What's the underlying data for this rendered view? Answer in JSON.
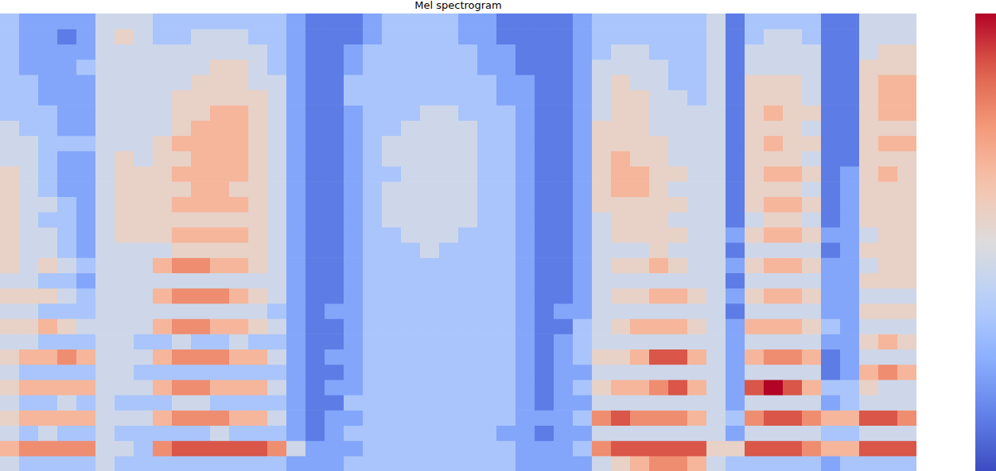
{
  "chart_data": {
    "type": "heatmap",
    "title": "Mel spectrogram",
    "tick_labels": false,
    "colorbar": {
      "range": [
        0,
        9
      ]
    },
    "cells": [
      [
        4,
        6,
        4,
        5,
        4,
        5,
        4,
        5,
        4,
        5,
        4,
        5,
        4,
        5,
        5,
        5,
        5,
        5,
        5,
        5,
        4,
        4,
        4,
        3,
        3,
        3,
        3,
        3,
        3,
        3
      ],
      [
        3,
        7,
        3,
        6,
        3,
        6,
        3,
        6,
        4,
        5,
        4,
        5,
        4,
        4,
        4,
        4,
        4,
        4,
        4,
        4,
        4,
        4,
        3,
        3,
        3,
        3,
        2,
        2,
        2,
        2
      ],
      [
        3,
        7,
        4,
        6,
        3,
        6,
        3,
        6,
        3,
        6,
        3,
        5,
        3,
        5,
        4,
        4,
        3,
        4,
        3,
        3,
        3,
        3,
        3,
        3,
        2,
        2,
        2,
        2,
        2,
        2
      ],
      [
        3,
        7,
        3,
        6,
        4,
        6,
        3,
        7,
        3,
        5,
        3,
        4,
        3,
        4,
        3,
        3,
        3,
        3,
        2,
        2,
        2,
        3,
        2,
        2,
        2,
        2,
        2,
        2,
        1,
        2
      ],
      [
        3,
        7,
        3,
        6,
        3,
        6,
        3,
        6,
        3,
        4,
        3,
        3,
        2,
        3,
        2,
        2,
        2,
        2,
        2,
        2,
        2,
        3,
        2,
        2,
        2,
        2,
        3,
        2,
        2,
        2
      ],
      [
        4,
        4,
        4,
        4,
        4,
        4,
        4,
        4,
        4,
        4,
        4,
        4,
        4,
        4,
        4,
        4,
        4,
        4,
        4,
        4,
        4,
        4,
        4,
        4,
        4,
        4,
        4,
        4,
        4,
        4
      ],
      [
        3,
        4,
        3,
        4,
        3,
        4,
        4,
        4,
        4,
        4,
        4,
        4,
        4,
        4,
        4,
        5,
        5,
        5,
        5,
        5,
        5,
        4,
        4,
        4,
        4,
        4,
        4,
        4,
        5,
        4
      ],
      [
        3,
        3,
        3,
        4,
        3,
        4,
        3,
        4,
        3,
        4,
        4,
        4,
        4,
        4,
        4,
        5,
        5,
        5,
        5,
        5,
        4,
        4,
        4,
        4,
        4,
        4,
        4,
        4,
        4,
        4
      ],
      [
        3,
        7,
        3,
        6,
        3,
        6,
        3,
        6,
        3,
        6,
        4,
        6,
        4,
        6,
        4,
        5,
        5,
        5,
        5,
        5,
        5,
        5,
        4,
        4,
        4,
        4,
        4,
        4,
        3,
        3
      ],
      [
        3,
        8,
        3,
        7,
        4,
        7,
        3,
        7,
        4,
        7,
        4,
        7,
        4,
        7,
        5,
        6,
        5,
        6,
        5,
        6,
        5,
        6,
        5,
        5,
        5,
        4,
        4,
        4,
        3,
        3
      ],
      [
        3,
        8,
        3,
        7,
        4,
        7,
        3,
        7,
        3,
        7,
        4,
        7,
        4,
        7,
        5,
        6,
        5,
        6,
        6,
        6,
        6,
        6,
        6,
        5,
        5,
        5,
        4,
        4,
        4,
        3
      ],
      [
        3,
        8,
        4,
        7,
        3,
        6,
        3,
        7,
        3,
        6,
        4,
        7,
        4,
        6,
        5,
        6,
        5,
        6,
        6,
        6,
        6,
        6,
        6,
        6,
        5,
        5,
        5,
        4,
        4,
        3
      ],
      [
        3,
        8,
        3,
        6,
        3,
        6,
        3,
        6,
        4,
        6,
        4,
        6,
        4,
        6,
        5,
        6,
        5,
        6,
        5,
        6,
        6,
        6,
        6,
        6,
        5,
        5,
        5,
        4,
        4,
        3
      ],
      [
        3,
        8,
        3,
        6,
        3,
        6,
        3,
        6,
        3,
        5,
        4,
        5,
        4,
        5,
        5,
        5,
        5,
        5,
        5,
        5,
        5,
        5,
        5,
        5,
        5,
        4,
        4,
        4,
        3,
        3
      ],
      [
        3,
        7,
        3,
        4,
        3,
        4,
        3,
        4,
        3,
        4,
        3,
        4,
        4,
        4,
        4,
        4,
        4,
        4,
        4,
        4,
        4,
        4,
        4,
        4,
        4,
        4,
        3,
        3,
        3,
        3
      ],
      [
        2,
        4,
        2,
        2,
        2,
        2,
        2,
        2,
        2,
        2,
        2,
        2,
        2,
        2,
        2,
        2,
        2,
        2,
        2,
        2,
        2,
        2,
        2,
        2,
        2,
        2,
        2,
        2,
        2,
        2
      ],
      [
        2,
        2,
        1,
        1,
        1,
        1,
        1,
        1,
        1,
        1,
        1,
        1,
        1,
        1,
        1,
        1,
        1,
        1,
        1,
        1,
        1,
        1,
        1,
        1,
        1,
        1,
        1,
        1,
        1,
        1
      ],
      [
        2,
        2,
        2,
        2,
        1,
        2,
        1,
        2,
        1,
        1,
        2,
        1,
        1,
        1,
        1,
        1,
        1,
        1,
        1,
        1,
        1,
        1,
        1,
        1,
        1,
        1,
        1,
        1,
        1,
        1
      ],
      [
        3,
        2,
        3,
        2,
        3,
        2,
        2,
        2,
        2,
        2,
        2,
        2,
        2,
        2,
        2,
        2,
        2,
        2,
        2,
        2,
        2,
        2,
        2,
        2,
        3,
        3,
        2,
        2,
        1,
        1
      ],
      [
        3,
        3,
        3,
        3,
        3,
        3,
        3,
        3,
        3,
        3,
        3,
        3,
        3,
        3,
        3,
        3,
        3,
        3,
        3,
        3,
        3,
        3,
        3,
        3,
        3,
        3,
        3,
        3,
        2,
        2
      ],
      [
        3,
        3,
        3,
        3,
        3,
        3,
        3,
        3,
        3,
        3,
        3,
        3,
        3,
        3,
        3,
        3,
        4,
        4,
        4,
        3,
        4,
        4,
        3,
        3,
        3,
        3,
        3,
        3,
        3,
        3
      ],
      [
        3,
        3,
        3,
        3,
        3,
        3,
        3,
        3,
        3,
        3,
        3,
        3,
        3,
        3,
        3,
        4,
        4,
        4,
        4,
        4,
        4,
        4,
        4,
        3,
        3,
        3,
        3,
        3,
        3,
        3
      ],
      [
        3,
        3,
        3,
        3,
        3,
        3,
        3,
        3,
        3,
        3,
        3,
        3,
        3,
        3,
        4,
        4,
        4,
        4,
        4,
        4,
        4,
        4,
        4,
        4,
        3,
        3,
        3,
        3,
        3,
        3
      ],
      [
        3,
        3,
        3,
        3,
        3,
        3,
        3,
        3,
        3,
        3,
        3,
        3,
        3,
        3,
        3,
        4,
        4,
        4,
        4,
        4,
        4,
        4,
        4,
        4,
        3,
        3,
        3,
        3,
        3,
        3
      ],
      [
        3,
        3,
        3,
        3,
        3,
        3,
        3,
        3,
        3,
        3,
        3,
        3,
        3,
        3,
        3,
        3,
        4,
        4,
        4,
        4,
        4,
        4,
        4,
        3,
        3,
        3,
        3,
        3,
        2,
        2
      ],
      [
        3,
        3,
        3,
        3,
        3,
        3,
        3,
        3,
        3,
        3,
        3,
        3,
        3,
        3,
        3,
        3,
        3,
        3,
        3,
        3,
        3,
        3,
        3,
        3,
        3,
        3,
        2,
        2,
        2,
        2
      ],
      [
        3,
        3,
        2,
        3,
        3,
        3,
        3,
        3,
        3,
        3,
        3,
        3,
        3,
        3,
        3,
        3,
        3,
        3,
        3,
        3,
        3,
        3,
        3,
        3,
        2,
        2,
        2,
        2,
        1,
        1
      ],
      [
        2,
        2,
        2,
        2,
        2,
        2,
        2,
        2,
        2,
        2,
        2,
        2,
        2,
        2,
        2,
        2,
        2,
        2,
        2,
        2,
        2,
        2,
        2,
        2,
        2,
        2,
        1,
        1,
        1,
        1
      ],
      [
        2,
        2,
        1,
        2,
        1,
        1,
        1,
        1,
        1,
        1,
        1,
        1,
        1,
        1,
        1,
        1,
        1,
        1,
        1,
        1,
        1,
        1,
        1,
        1,
        1,
        1,
        1,
        1,
        1,
        1
      ],
      [
        2,
        2,
        2,
        2,
        2,
        2,
        2,
        2,
        2,
        1,
        2,
        1,
        1,
        1,
        1,
        1,
        1,
        1,
        1,
        1,
        1,
        1,
        1,
        1,
        1,
        1,
        1,
        1,
        1,
        1
      ],
      [
        2,
        3,
        2,
        3,
        2,
        3,
        2,
        3,
        3,
        3,
        2,
        2,
        2,
        2,
        2,
        2,
        2,
        2,
        2,
        2,
        2,
        2,
        2,
        2,
        2,
        2,
        2,
        2,
        2,
        2
      ],
      [
        4,
        7,
        4,
        7,
        4,
        5,
        4,
        5,
        4,
        4,
        4,
        4,
        4,
        4,
        4,
        4,
        4,
        5,
        5,
        5,
        5,
        5,
        5,
        4,
        4,
        4,
        4,
        3,
        3,
        3
      ],
      [
        5,
        8,
        4,
        8,
        4,
        6,
        4,
        5,
        4,
        5,
        4,
        5,
        4,
        5,
        4,
        5,
        5,
        5,
        6,
        6,
        6,
        5,
        5,
        5,
        5,
        5,
        4,
        4,
        3,
        3
      ],
      [
        6,
        8,
        4,
        7,
        4,
        6,
        4,
        6,
        4,
        6,
        4,
        5,
        4,
        5,
        4,
        5,
        5,
        5,
        6,
        6,
        5,
        5,
        5,
        5,
        5,
        4,
        4,
        4,
        3,
        3
      ],
      [
        7,
        8,
        4,
        7,
        4,
        7,
        4,
        8,
        4,
        6,
        4,
        6,
        4,
        6,
        5,
        5,
        5,
        5,
        5,
        5,
        5,
        5,
        4,
        4,
        4,
        4,
        4,
        3,
        3,
        3
      ],
      [
        7,
        8,
        4,
        7,
        4,
        8,
        4,
        8,
        4,
        6,
        4,
        6,
        4,
        5,
        4,
        5,
        4,
        5,
        4,
        5,
        4,
        4,
        4,
        4,
        4,
        3,
        3,
        3,
        3,
        3
      ],
      [
        6,
        8,
        4,
        6,
        4,
        6,
        4,
        6,
        4,
        5,
        4,
        5,
        4,
        4,
        4,
        4,
        4,
        4,
        4,
        4,
        4,
        4,
        4,
        4,
        3,
        3,
        3,
        3,
        3,
        3
      ],
      [
        4,
        5,
        4,
        4,
        4,
        4,
        4,
        4,
        4,
        4,
        4,
        4,
        4,
        4,
        4,
        4,
        4,
        4,
        4,
        4,
        4,
        4,
        4,
        4,
        4,
        4,
        4,
        4,
        4,
        4
      ],
      [
        3,
        5,
        2,
        3,
        2,
        2,
        2,
        2,
        2,
        2,
        1,
        2,
        1,
        2,
        1,
        2,
        1,
        1,
        1,
        1,
        1,
        1,
        1,
        1,
        1,
        1,
        1,
        1,
        1,
        1
      ],
      [
        3,
        8,
        4,
        7,
        4,
        8,
        4,
        6,
        4,
        6,
        4,
        5,
        4,
        5,
        4,
        5,
        4,
        5,
        5,
        5,
        5,
        5,
        5,
        5,
        5,
        5,
        4,
        4,
        3,
        3
      ],
      [
        3,
        8,
        4,
        8,
        4,
        9,
        4,
        7,
        4,
        6,
        4,
        6,
        4,
        6,
        4,
        6,
        5,
        6,
        5,
        6,
        5,
        6,
        5,
        6,
        5,
        5,
        4,
        4,
        4,
        3
      ],
      [
        3,
        8,
        4,
        8,
        4,
        8,
        4,
        7,
        4,
        6,
        4,
        6,
        4,
        6,
        4,
        6,
        5,
        6,
        5,
        6,
        5,
        5,
        5,
        5,
        5,
        5,
        4,
        4,
        4,
        3
      ],
      [
        3,
        7,
        4,
        7,
        4,
        6,
        4,
        6,
        4,
        5,
        4,
        5,
        4,
        5,
        4,
        5,
        4,
        5,
        4,
        5,
        4,
        5,
        4,
        5,
        4,
        4,
        4,
        4,
        3,
        3
      ],
      [
        2,
        6,
        3,
        6,
        2,
        3,
        1,
        1,
        2,
        3,
        2,
        2,
        2,
        2,
        1,
        2,
        1,
        1,
        1,
        1,
        1,
        1,
        1,
        1,
        1,
        1,
        1,
        1,
        1,
        1
      ],
      [
        3,
        6,
        3,
        6,
        3,
        3,
        2,
        2,
        2,
        2,
        2,
        2,
        2,
        2,
        2,
        2,
        2,
        2,
        2,
        2,
        1,
        1,
        1,
        1,
        1,
        1,
        1,
        1,
        1,
        1
      ],
      [
        3,
        8,
        4,
        8,
        4,
        5,
        6,
        4,
        5,
        4,
        5,
        4,
        5,
        4,
        5,
        4,
        5,
        5,
        5,
        5,
        5,
        5,
        5,
        5,
        5,
        5,
        5,
        4,
        4,
        4
      ],
      [
        3,
        8,
        4,
        8,
        4,
        4,
        7,
        4,
        6,
        4,
        5,
        4,
        5,
        5,
        5,
        5,
        5,
        5,
        5,
        6,
        5,
        6,
        5,
        6,
        6,
        6,
        5,
        5,
        4,
        4
      ],
      [
        3,
        8,
        4,
        7,
        4,
        4,
        6,
        4,
        5,
        4,
        5,
        4,
        5,
        5,
        5,
        5,
        5,
        5,
        5,
        5,
        5,
        6,
        5,
        6,
        6,
        6,
        5,
        5,
        4,
        4
      ]
    ]
  }
}
